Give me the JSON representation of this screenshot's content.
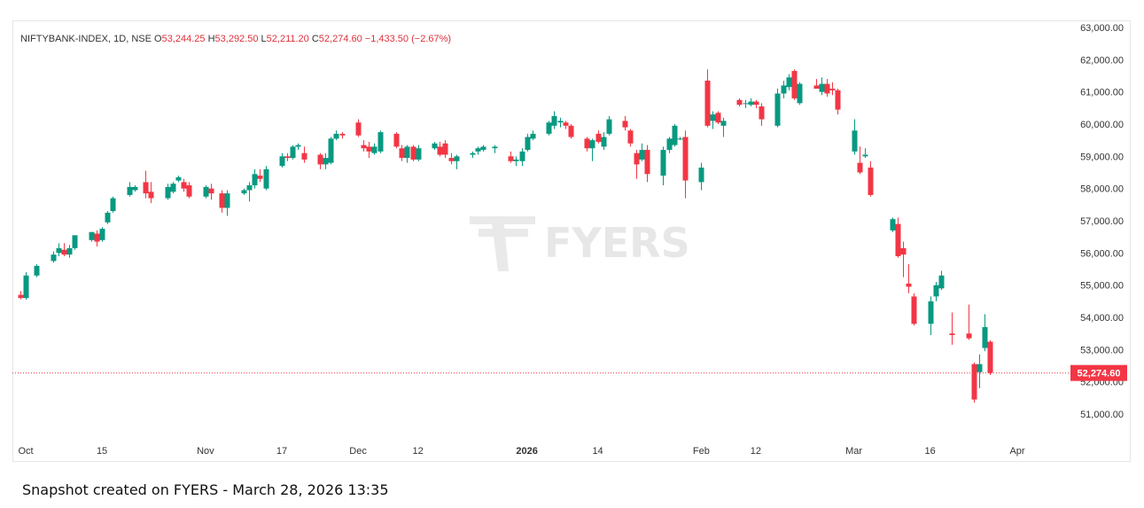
{
  "legend": {
    "symbol": "NIFTYBANK-INDEX",
    "interval": "1D",
    "exchange": "NSE",
    "open_label": "O",
    "open": "53,244.25",
    "high_label": "H",
    "high": "53,292.50",
    "low_label": "L",
    "low": "52,211.20",
    "close_label": "C",
    "close": "52,274.60",
    "change": "−1,433.50",
    "change_pct": "(−2.67%)"
  },
  "watermark": "FYERS",
  "footer": "Snapshot created on FYERS - March 28, 2026 13:35",
  "colors": {
    "up": "#089981",
    "down": "#f23645",
    "price_label_bg": "#f23645"
  },
  "chart_data": {
    "type": "candlestick",
    "ylim": [
      50200,
      63000
    ],
    "y_ticks": [
      51000,
      52000,
      53000,
      54000,
      55000,
      56000,
      57000,
      58000,
      59000,
      60000,
      61000,
      62000,
      63000
    ],
    "y_tick_labels": [
      "51,000.00",
      "52,000.00",
      "53,000.00",
      "54,000.00",
      "55,000.00",
      "56,000.00",
      "57,000.00",
      "58,000.00",
      "59,000.00",
      "60,000.00",
      "61,000.00",
      "62,000.00",
      "63,000.00"
    ],
    "x_ticks": [
      {
        "label": "Oct",
        "date": "2025-10-01",
        "bold": false
      },
      {
        "label": "15",
        "date": "2025-10-15",
        "bold": false
      },
      {
        "label": "Nov",
        "date": "2025-11-03",
        "bold": false
      },
      {
        "label": "17",
        "date": "2025-11-17",
        "bold": false
      },
      {
        "label": "Dec",
        "date": "2025-12-01",
        "bold": false
      },
      {
        "label": "12",
        "date": "2025-12-12",
        "bold": false
      },
      {
        "label": "2026",
        "date": "2026-01-01",
        "bold": true
      },
      {
        "label": "14",
        "date": "2026-01-14",
        "bold": false
      },
      {
        "label": "Feb",
        "date": "2026-02-02",
        "bold": false
      },
      {
        "label": "12",
        "date": "2026-02-12",
        "bold": false
      },
      {
        "label": "Mar",
        "date": "2026-03-02",
        "bold": false
      },
      {
        "label": "16",
        "date": "2026-03-16",
        "bold": false
      },
      {
        "label": "Apr",
        "date": "2026-04-01",
        "bold": false
      }
    ],
    "last_price": 52274.6,
    "last_price_label": "52,274.60",
    "candles": [
      {
        "date": "2025-09-30",
        "o": 54700,
        "h": 54820,
        "l": 54560,
        "c": 54600
      },
      {
        "date": "2025-10-01",
        "o": 54600,
        "h": 55400,
        "l": 54550,
        "c": 55300
      },
      {
        "date": "2025-10-03",
        "o": 55300,
        "h": 55650,
        "l": 55250,
        "c": 55600
      },
      {
        "date": "2025-10-06",
        "o": 55750,
        "h": 56050,
        "l": 55700,
        "c": 55950
      },
      {
        "date": "2025-10-07",
        "o": 56000,
        "h": 56300,
        "l": 55900,
        "c": 56150
      },
      {
        "date": "2025-10-08",
        "o": 56100,
        "h": 56300,
        "l": 55900,
        "c": 55950
      },
      {
        "date": "2025-10-09",
        "o": 55950,
        "h": 56250,
        "l": 55850,
        "c": 56150
      },
      {
        "date": "2025-10-10",
        "o": 56150,
        "h": 56550,
        "l": 56100,
        "c": 56550
      },
      {
        "date": "2025-10-13",
        "o": 56400,
        "h": 56650,
        "l": 56350,
        "c": 56650
      },
      {
        "date": "2025-10-14",
        "o": 56600,
        "h": 56700,
        "l": 56200,
        "c": 56350
      },
      {
        "date": "2025-10-15",
        "o": 56400,
        "h": 56800,
        "l": 56350,
        "c": 56750
      },
      {
        "date": "2025-10-16",
        "o": 56950,
        "h": 57300,
        "l": 56900,
        "c": 57250
      },
      {
        "date": "2025-10-17",
        "o": 57300,
        "h": 57750,
        "l": 57250,
        "c": 57700
      },
      {
        "date": "2025-10-20",
        "o": 57800,
        "h": 58200,
        "l": 57750,
        "c": 58050
      },
      {
        "date": "2025-10-21",
        "o": 57950,
        "h": 58100,
        "l": 57900,
        "c": 58050
      },
      {
        "date": "2025-10-23",
        "o": 58200,
        "h": 58550,
        "l": 57700,
        "c": 57850
      },
      {
        "date": "2025-10-24",
        "o": 57900,
        "h": 58200,
        "l": 57550,
        "c": 57700
      },
      {
        "date": "2025-10-27",
        "o": 57700,
        "h": 58150,
        "l": 57650,
        "c": 58050
      },
      {
        "date": "2025-10-28",
        "o": 57900,
        "h": 58200,
        "l": 57850,
        "c": 58150
      },
      {
        "date": "2025-10-29",
        "o": 58250,
        "h": 58400,
        "l": 58200,
        "c": 58350
      },
      {
        "date": "2025-10-30",
        "o": 58200,
        "h": 58300,
        "l": 57900,
        "c": 58000
      },
      {
        "date": "2025-10-31",
        "o": 58100,
        "h": 58200,
        "l": 57700,
        "c": 57750
      },
      {
        "date": "2025-11-03",
        "o": 57750,
        "h": 58100,
        "l": 57700,
        "c": 58050
      },
      {
        "date": "2025-11-04",
        "o": 58000,
        "h": 58150,
        "l": 57650,
        "c": 57850
      },
      {
        "date": "2025-11-06",
        "o": 57850,
        "h": 57950,
        "l": 57250,
        "c": 57400
      },
      {
        "date": "2025-11-07",
        "o": 57400,
        "h": 57950,
        "l": 57150,
        "c": 57850
      },
      {
        "date": "2025-11-10",
        "o": 57850,
        "h": 58000,
        "l": 57800,
        "c": 57950
      },
      {
        "date": "2025-11-11",
        "o": 57950,
        "h": 58200,
        "l": 57600,
        "c": 58100
      },
      {
        "date": "2025-11-12",
        "o": 58100,
        "h": 58600,
        "l": 58000,
        "c": 58450
      },
      {
        "date": "2025-11-13",
        "o": 58400,
        "h": 58600,
        "l": 58200,
        "c": 58300
      },
      {
        "date": "2025-11-14",
        "o": 58000,
        "h": 58700,
        "l": 57950,
        "c": 58600
      },
      {
        "date": "2025-11-17",
        "o": 58700,
        "h": 59100,
        "l": 58650,
        "c": 59000
      },
      {
        "date": "2025-11-18",
        "o": 59000,
        "h": 59100,
        "l": 58850,
        "c": 58950
      },
      {
        "date": "2025-11-19",
        "o": 58950,
        "h": 59350,
        "l": 58900,
        "c": 59300
      },
      {
        "date": "2025-11-20",
        "o": 59300,
        "h": 59400,
        "l": 59200,
        "c": 59350
      },
      {
        "date": "2025-11-21",
        "o": 59100,
        "h": 59300,
        "l": 58800,
        "c": 58900
      },
      {
        "date": "2025-11-24",
        "o": 59050,
        "h": 59100,
        "l": 58600,
        "c": 58750
      },
      {
        "date": "2025-11-25",
        "o": 58750,
        "h": 59100,
        "l": 58600,
        "c": 58950
      },
      {
        "date": "2025-11-26",
        "o": 58800,
        "h": 59600,
        "l": 58750,
        "c": 59550
      },
      {
        "date": "2025-11-27",
        "o": 59550,
        "h": 59800,
        "l": 59500,
        "c": 59700
      },
      {
        "date": "2025-11-28",
        "o": 59700,
        "h": 59750,
        "l": 59550,
        "c": 59650
      },
      {
        "date": "2025-12-01",
        "o": 60050,
        "h": 60150,
        "l": 59600,
        "c": 59650
      },
      {
        "date": "2025-12-02",
        "o": 59350,
        "h": 59500,
        "l": 59150,
        "c": 59250
      },
      {
        "date": "2025-12-03",
        "o": 59300,
        "h": 59450,
        "l": 58950,
        "c": 59150
      },
      {
        "date": "2025-12-04",
        "o": 59100,
        "h": 59400,
        "l": 59050,
        "c": 59300
      },
      {
        "date": "2025-12-05",
        "o": 59150,
        "h": 59800,
        "l": 59100,
        "c": 59750
      },
      {
        "date": "2025-12-08",
        "o": 59700,
        "h": 59750,
        "l": 59250,
        "c": 59300
      },
      {
        "date": "2025-12-09",
        "o": 59250,
        "h": 59350,
        "l": 58850,
        "c": 58950
      },
      {
        "date": "2025-12-10",
        "o": 58950,
        "h": 59350,
        "l": 58800,
        "c": 59300
      },
      {
        "date": "2025-12-11",
        "o": 59300,
        "h": 59350,
        "l": 58850,
        "c": 58900
      },
      {
        "date": "2025-12-12",
        "o": 58900,
        "h": 59350,
        "l": 58850,
        "c": 59250
      },
      {
        "date": "2025-12-15",
        "o": 59250,
        "h": 59450,
        "l": 59200,
        "c": 59400
      },
      {
        "date": "2025-12-16",
        "o": 59300,
        "h": 59450,
        "l": 59000,
        "c": 59050
      },
      {
        "date": "2025-12-17",
        "o": 59400,
        "h": 59500,
        "l": 58950,
        "c": 59050
      },
      {
        "date": "2025-12-18",
        "o": 58950,
        "h": 59100,
        "l": 58750,
        "c": 58850
      },
      {
        "date": "2025-12-19",
        "o": 58850,
        "h": 59050,
        "l": 58600,
        "c": 59000
      },
      {
        "date": "2025-12-22",
        "o": 59050,
        "h": 59150,
        "l": 58950,
        "c": 59100
      },
      {
        "date": "2025-12-23",
        "o": 59150,
        "h": 59300,
        "l": 59050,
        "c": 59250
      },
      {
        "date": "2025-12-24",
        "o": 59200,
        "h": 59350,
        "l": 59150,
        "c": 59300
      },
      {
        "date": "2025-12-26",
        "o": 59250,
        "h": 59350,
        "l": 59100,
        "c": 59300
      },
      {
        "date": "2025-12-29",
        "o": 59000,
        "h": 59150,
        "l": 58800,
        "c": 58850
      },
      {
        "date": "2025-12-30",
        "o": 58850,
        "h": 59000,
        "l": 58700,
        "c": 58900
      },
      {
        "date": "2025-12-31",
        "o": 58850,
        "h": 59250,
        "l": 58700,
        "c": 59150
      },
      {
        "date": "2026-01-01",
        "o": 59200,
        "h": 59700,
        "l": 59150,
        "c": 59600
      },
      {
        "date": "2026-01-02",
        "o": 59550,
        "h": 59800,
        "l": 59500,
        "c": 59700
      },
      {
        "date": "2026-01-05",
        "o": 59700,
        "h": 60100,
        "l": 59650,
        "c": 60050
      },
      {
        "date": "2026-01-06",
        "o": 59950,
        "h": 60400,
        "l": 59850,
        "c": 60250
      },
      {
        "date": "2026-01-07",
        "o": 60050,
        "h": 60200,
        "l": 59900,
        "c": 60100
      },
      {
        "date": "2026-01-08",
        "o": 60050,
        "h": 60100,
        "l": 59850,
        "c": 59950
      },
      {
        "date": "2026-01-09",
        "o": 59950,
        "h": 60000,
        "l": 59550,
        "c": 59600
      },
      {
        "date": "2026-01-12",
        "o": 59550,
        "h": 59600,
        "l": 59150,
        "c": 59250
      },
      {
        "date": "2026-01-13",
        "o": 59250,
        "h": 59550,
        "l": 58850,
        "c": 59500
      },
      {
        "date": "2026-01-14",
        "o": 59700,
        "h": 59800,
        "l": 59400,
        "c": 59450
      },
      {
        "date": "2026-01-15",
        "o": 59300,
        "h": 59750,
        "l": 59200,
        "c": 59600
      },
      {
        "date": "2026-01-16",
        "o": 59700,
        "h": 60250,
        "l": 59650,
        "c": 60150
      },
      {
        "date": "2026-01-19",
        "o": 60100,
        "h": 60250,
        "l": 59800,
        "c": 59900
      },
      {
        "date": "2026-01-20",
        "o": 59800,
        "h": 59850,
        "l": 59300,
        "c": 59400
      },
      {
        "date": "2026-01-21",
        "o": 59100,
        "h": 59200,
        "l": 58300,
        "c": 58750
      },
      {
        "date": "2026-01-22",
        "o": 58900,
        "h": 59400,
        "l": 58850,
        "c": 59200
      },
      {
        "date": "2026-01-23",
        "o": 59200,
        "h": 59350,
        "l": 58200,
        "c": 58450
      },
      {
        "date": "2026-01-26",
        "o": 58400,
        "h": 59300,
        "l": 58100,
        "c": 59200
      },
      {
        "date": "2026-01-27",
        "o": 59200,
        "h": 59600,
        "l": 59100,
        "c": 59550
      },
      {
        "date": "2026-01-28",
        "o": 59350,
        "h": 60000,
        "l": 59300,
        "c": 59950
      },
      {
        "date": "2026-01-29",
        "o": 59550,
        "h": 59600,
        "l": 59500,
        "c": 59550
      },
      {
        "date": "2026-01-30",
        "o": 59600,
        "h": 59800,
        "l": 57700,
        "c": 58250
      },
      {
        "date": "2026-02-02",
        "o": 58200,
        "h": 58800,
        "l": 57950,
        "c": 58650
      },
      {
        "date": "2026-02-03",
        "o": 61350,
        "h": 61700,
        "l": 59900,
        "c": 59950
      },
      {
        "date": "2026-02-04",
        "o": 60100,
        "h": 60400,
        "l": 59850,
        "c": 60300
      },
      {
        "date": "2026-02-05",
        "o": 60350,
        "h": 60400,
        "l": 60000,
        "c": 60050
      },
      {
        "date": "2026-02-06",
        "o": 59950,
        "h": 60200,
        "l": 59600,
        "c": 60100
      },
      {
        "date": "2026-02-09",
        "o": 60750,
        "h": 60800,
        "l": 60550,
        "c": 60600
      },
      {
        "date": "2026-02-10",
        "o": 60650,
        "h": 60750,
        "l": 60500,
        "c": 60650
      },
      {
        "date": "2026-02-11",
        "o": 60600,
        "h": 60800,
        "l": 60550,
        "c": 60700
      },
      {
        "date": "2026-02-12",
        "o": 60700,
        "h": 60750,
        "l": 60500,
        "c": 60600
      },
      {
        "date": "2026-02-13",
        "o": 60550,
        "h": 60650,
        "l": 59950,
        "c": 60150
      },
      {
        "date": "2026-02-16",
        "o": 59950,
        "h": 61100,
        "l": 59900,
        "c": 60950
      },
      {
        "date": "2026-02-17",
        "o": 60950,
        "h": 61350,
        "l": 60800,
        "c": 61200
      },
      {
        "date": "2026-02-18",
        "o": 61150,
        "h": 61550,
        "l": 61050,
        "c": 61450
      },
      {
        "date": "2026-02-19",
        "o": 61650,
        "h": 61700,
        "l": 60750,
        "c": 60800
      },
      {
        "date": "2026-02-20",
        "o": 60650,
        "h": 61300,
        "l": 60600,
        "c": 61250
      },
      {
        "date": "2026-02-23",
        "o": 61200,
        "h": 61400,
        "l": 61100,
        "c": 61100
      },
      {
        "date": "2026-02-24",
        "o": 61000,
        "h": 61450,
        "l": 60900,
        "c": 61250
      },
      {
        "date": "2026-02-25",
        "o": 61250,
        "h": 61400,
        "l": 60850,
        "c": 60950
      },
      {
        "date": "2026-02-26",
        "o": 61100,
        "h": 61300,
        "l": 60900,
        "c": 61050
      },
      {
        "date": "2026-02-27",
        "o": 61050,
        "h": 61100,
        "l": 60300,
        "c": 60450
      },
      {
        "date": "2026-03-02",
        "o": 59150,
        "h": 60150,
        "l": 59050,
        "c": 59800
      },
      {
        "date": "2026-03-03",
        "o": 58800,
        "h": 59300,
        "l": 58450,
        "c": 58500
      },
      {
        "date": "2026-03-04",
        "o": 59000,
        "h": 59250,
        "l": 58950,
        "c": 59050
      },
      {
        "date": "2026-03-05",
        "o": 58650,
        "h": 58850,
        "l": 57750,
        "c": 57800
      },
      {
        "date": "2026-03-09",
        "o": 56700,
        "h": 57100,
        "l": 56650,
        "c": 57050
      },
      {
        "date": "2026-03-10",
        "o": 56900,
        "h": 57100,
        "l": 55850,
        "c": 55900
      },
      {
        "date": "2026-03-11",
        "o": 56150,
        "h": 56350,
        "l": 55250,
        "c": 55950
      },
      {
        "date": "2026-03-12",
        "o": 55050,
        "h": 55650,
        "l": 54750,
        "c": 54950
      },
      {
        "date": "2026-03-13",
        "o": 54650,
        "h": 54750,
        "l": 53750,
        "c": 53800
      },
      {
        "date": "2026-03-16",
        "o": 53800,
        "h": 54650,
        "l": 53450,
        "c": 54500
      },
      {
        "date": "2026-03-17",
        "o": 54650,
        "h": 55100,
        "l": 54500,
        "c": 55000
      },
      {
        "date": "2026-03-18",
        "o": 54900,
        "h": 55450,
        "l": 54850,
        "c": 55300
      },
      {
        "date": "2026-03-20",
        "o": 53500,
        "h": 54150,
        "l": 53150,
        "c": 53450
      },
      {
        "date": "2026-03-23",
        "o": 53500,
        "h": 54400,
        "l": 53300,
        "c": 53350
      },
      {
        "date": "2026-03-24",
        "o": 52550,
        "h": 52600,
        "l": 51350,
        "c": 51450
      },
      {
        "date": "2026-03-25",
        "o": 52300,
        "h": 52850,
        "l": 51800,
        "c": 52550
      },
      {
        "date": "2026-03-26",
        "o": 53050,
        "h": 54100,
        "l": 52950,
        "c": 53700
      },
      {
        "date": "2026-03-27",
        "o": 53244.25,
        "h": 53292.5,
        "l": 52211.2,
        "c": 52274.6
      }
    ]
  }
}
